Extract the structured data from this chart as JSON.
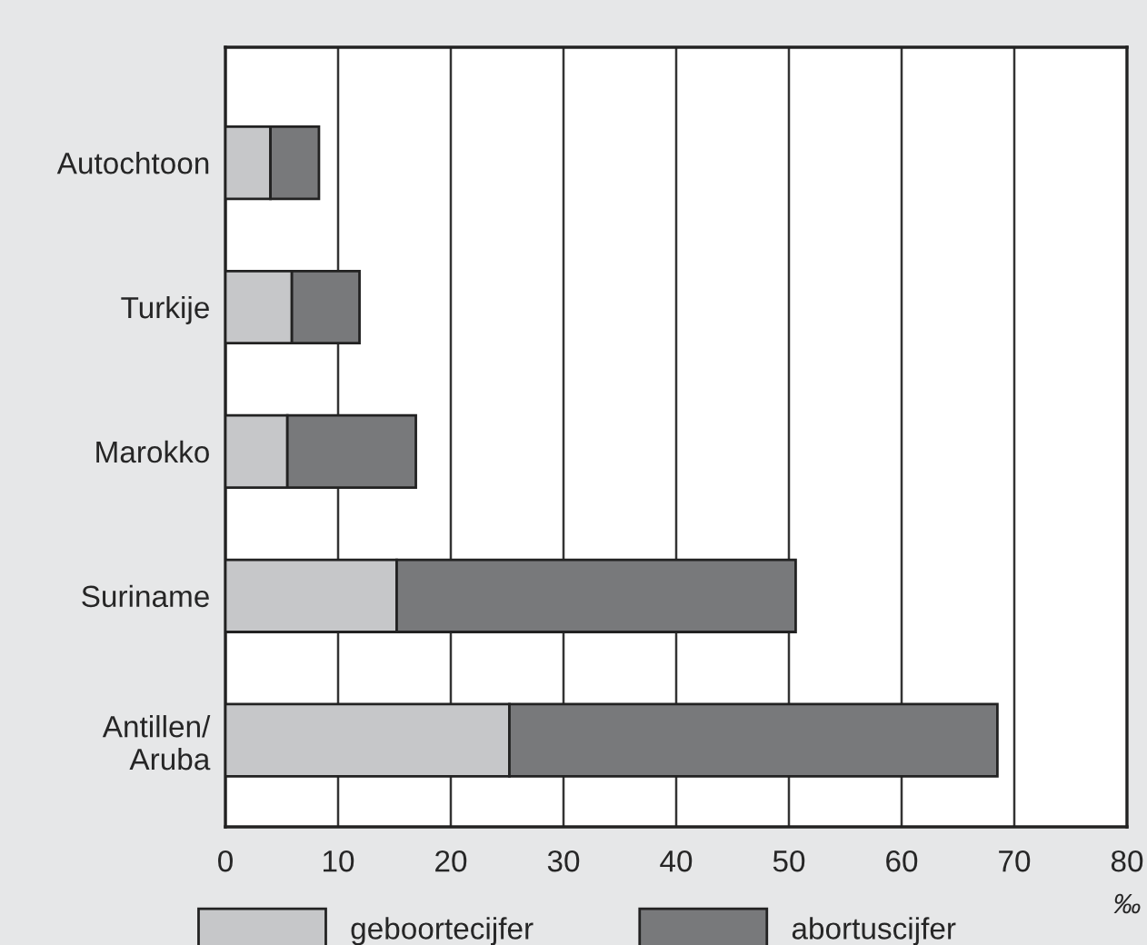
{
  "chart_data": {
    "type": "bar",
    "orientation": "horizontal",
    "stacked": true,
    "xlabel": "‰",
    "categories": [
      "Autochtoon",
      "Turkije",
      "Marokko",
      "Suriname",
      "Antillen/\nAruba"
    ],
    "series": [
      {
        "name": "geboortecijfer",
        "color": "#c6c7c9",
        "values": [
          4.0,
          5.9,
          5.5,
          15.2,
          25.2
        ]
      },
      {
        "name": "abortuscijfer",
        "color": "#78797b",
        "values": [
          4.3,
          6.0,
          11.4,
          35.4,
          43.3
        ]
      }
    ],
    "xlim": [
      0,
      80
    ],
    "xticks": [
      0,
      10,
      20,
      30,
      40,
      50,
      60,
      70,
      80
    ],
    "grid": "x",
    "legend": "bottom"
  }
}
